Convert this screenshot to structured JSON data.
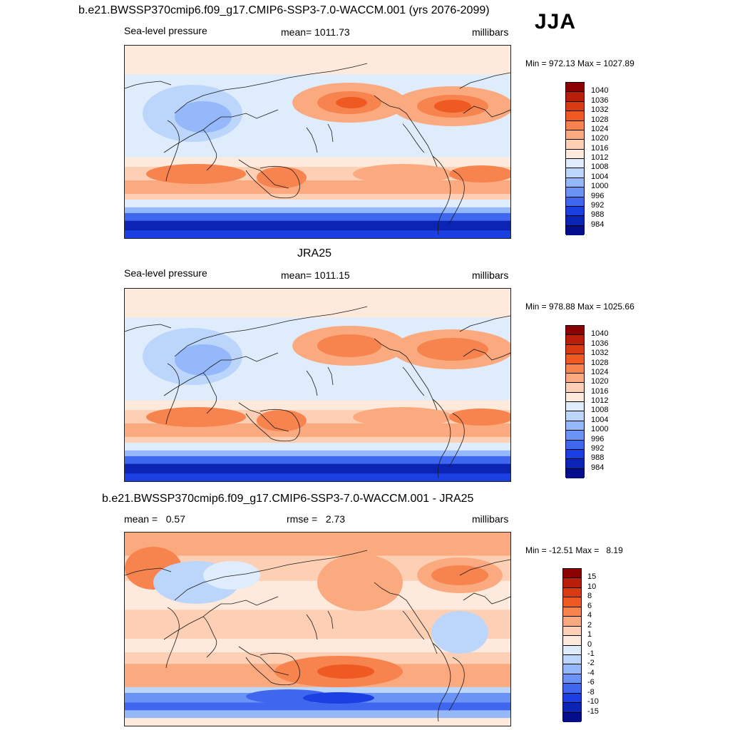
{
  "main_title": "b.e21.BWSSP370cmip6.f09_g17.CMIP6-SSP3-7.0-WACCM.001 (yrs 2076-2099)",
  "season": "JJA",
  "colors": {
    "pressure_scale": [
      "#8b0000",
      "#b81e0a",
      "#d93a12",
      "#ef5a23",
      "#f7834f",
      "#fbaa80",
      "#fdd0b5",
      "#fdeadc",
      "#dfecfb",
      "#bcd5fb",
      "#94b8f9",
      "#6b93f5",
      "#3f66ee",
      "#1a3fe3",
      "#0b24b4",
      "#050e8a"
    ],
    "diff_scale": [
      "#8b0000",
      "#b81e0a",
      "#d93a12",
      "#ef5a23",
      "#f7834f",
      "#fbaa80",
      "#fdd0b5",
      "#fdeadc",
      "#dfecfb",
      "#bcd5fb",
      "#94b8f9",
      "#6b93f5",
      "#3f66ee",
      "#1a3fe3",
      "#0b24b4",
      "#050e8a"
    ]
  },
  "chart_data": [
    {
      "type": "heatmap",
      "title": "",
      "left_label": "Sea-level pressure",
      "center_label": "mean= 1011.73",
      "right_label": "millibars",
      "minmax": "Min = 972.13 Max = 1027.89",
      "mean": 1011.73,
      "min": 972.13,
      "max": 1027.89,
      "levels": [
        "1040",
        "1036",
        "1032",
        "1028",
        "1024",
        "1020",
        "1016",
        "1012",
        "1008",
        "1004",
        "1000",
        "996",
        "992",
        "988",
        "984"
      ]
    },
    {
      "type": "heatmap",
      "title": "JRA25",
      "left_label": "Sea-level pressure",
      "center_label": "mean= 1011.15",
      "right_label": "millibars",
      "minmax": "Min = 978.88 Max = 1025.66",
      "mean": 1011.15,
      "min": 978.88,
      "max": 1025.66,
      "levels": [
        "1040",
        "1036",
        "1032",
        "1028",
        "1024",
        "1020",
        "1016",
        "1012",
        "1008",
        "1004",
        "1000",
        "996",
        "992",
        "988",
        "984"
      ]
    },
    {
      "type": "heatmap",
      "title": "b.e21.BWSSP370cmip6.f09_g17.CMIP6-SSP3-7.0-WACCM.001 - JRA25",
      "left_label": "mean =   0.57",
      "center_label": "rmse =   2.73",
      "right_label": "millibars",
      "minmax": "Min = -12.51 Max =   8.19",
      "mean": 0.57,
      "rmse": 2.73,
      "min": -12.51,
      "max": 8.19,
      "levels": [
        "15",
        "10",
        "8",
        "6",
        "4",
        "2",
        "1",
        "0",
        "-1",
        "-2",
        "-4",
        "-6",
        "-8",
        "-10",
        "-15"
      ]
    }
  ]
}
